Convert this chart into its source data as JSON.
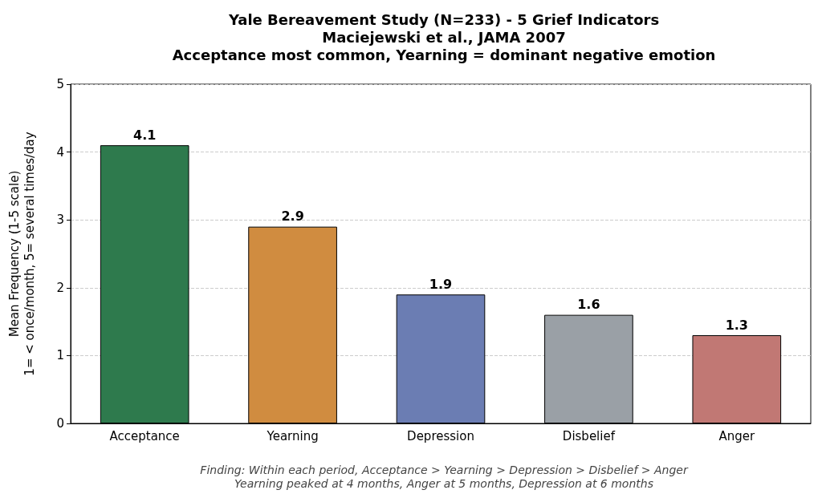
{
  "chart_data": {
    "type": "bar",
    "title": "Yale Bereavement Study (N=233) - 5 Grief Indicators\nMaciejewski et al., JAMA 2007\nAcceptance most common, Yearning = dominant negative emotion",
    "ylabel": "Mean Frequency (1-5 scale)\n1= < once/month, 5= several times/day",
    "categories": [
      "Acceptance",
      "Yearning",
      "Depression",
      "Disbelief",
      "Anger"
    ],
    "values": [
      4.1,
      2.9,
      1.9,
      1.6,
      1.3
    ],
    "colors": [
      "#2e7a4d",
      "#d08c40",
      "#6b7db3",
      "#9aa0a6",
      "#c17874"
    ],
    "ylim": [
      0,
      5
    ],
    "yticks": [
      0,
      1,
      2,
      3,
      4,
      5
    ],
    "grid": "y",
    "data_labels": true,
    "annotations": [
      "Finding: Within each period, Acceptance > Yearning > Depression > Disbelief > Anger",
      "Yearning peaked at 4 months, Anger at 5 months, Depression at 6 months"
    ]
  }
}
